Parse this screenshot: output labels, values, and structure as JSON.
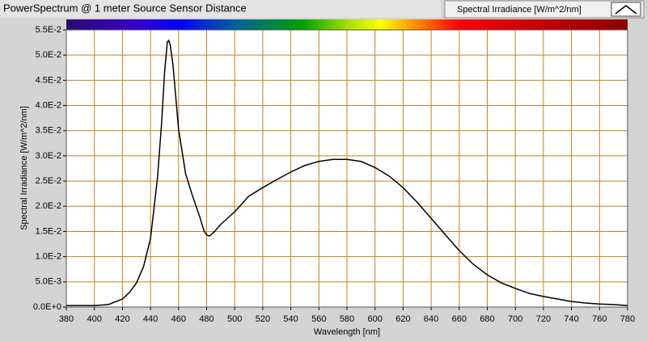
{
  "chart_data": {
    "type": "line",
    "title": "PowerSpectrum @ 1 meter Source Sensor Distance",
    "x_label": "Wavelength [nm]",
    "y_label": "Spectral Irradiance [W/m^2/nm]",
    "x": [
      380,
      400,
      410,
      420,
      425,
      430,
      435,
      440,
      445,
      448,
      450,
      452,
      453,
      454,
      456,
      458,
      460,
      465,
      470,
      475,
      478,
      480,
      482,
      485,
      490,
      500,
      510,
      520,
      530,
      540,
      550,
      560,
      570,
      580,
      590,
      600,
      610,
      620,
      630,
      640,
      650,
      660,
      670,
      680,
      690,
      700,
      710,
      720,
      730,
      740,
      750,
      760,
      770,
      780
    ],
    "series": [
      {
        "name": "Spectral Irradiance [W/m^2/nm]",
        "color": "#000000",
        "values": [
          0.0003,
          0.0003,
          0.0005,
          0.0016,
          0.0029,
          0.0048,
          0.008,
          0.0136,
          0.0257,
          0.0369,
          0.0465,
          0.0526,
          0.0529,
          0.0521,
          0.0481,
          0.0417,
          0.0353,
          0.0265,
          0.022,
          0.018,
          0.0152,
          0.0143,
          0.0141,
          0.0148,
          0.0164,
          0.0189,
          0.022,
          0.0237,
          0.0253,
          0.0268,
          0.0281,
          0.0289,
          0.0293,
          0.0293,
          0.0289,
          0.0277,
          0.026,
          0.0237,
          0.0208,
          0.0176,
          0.0144,
          0.0112,
          0.0085,
          0.0064,
          0.0048,
          0.0037,
          0.0027,
          0.0021,
          0.0016,
          0.0011,
          0.0008,
          0.0006,
          0.0005,
          0.0003
        ]
      }
    ],
    "xlim": [
      380,
      780
    ],
    "xticks": [
      380,
      400,
      420,
      440,
      460,
      480,
      500,
      520,
      540,
      560,
      580,
      600,
      620,
      640,
      660,
      680,
      700,
      720,
      740,
      760,
      780
    ],
    "ylim": [
      0,
      0.055
    ],
    "yticks": [
      {
        "value": 0,
        "label": "0.0E+0"
      },
      {
        "value": 0.005,
        "label": "5.0E-3"
      },
      {
        "value": 0.01,
        "label": "1.0E-2"
      },
      {
        "value": 0.015,
        "label": "1.5E-2"
      },
      {
        "value": 0.02,
        "label": "2.0E-2"
      },
      {
        "value": 0.025,
        "label": "2.5E-2"
      },
      {
        "value": 0.03,
        "label": "3.0E-2"
      },
      {
        "value": 0.035,
        "label": "3.5E-2"
      },
      {
        "value": 0.04,
        "label": "4.0E-2"
      },
      {
        "value": 0.045,
        "label": "4.5E-2"
      },
      {
        "value": 0.05,
        "label": "5.0E-2"
      },
      {
        "value": 0.055,
        "label": "5.5E-2"
      }
    ],
    "grid": true
  }
}
